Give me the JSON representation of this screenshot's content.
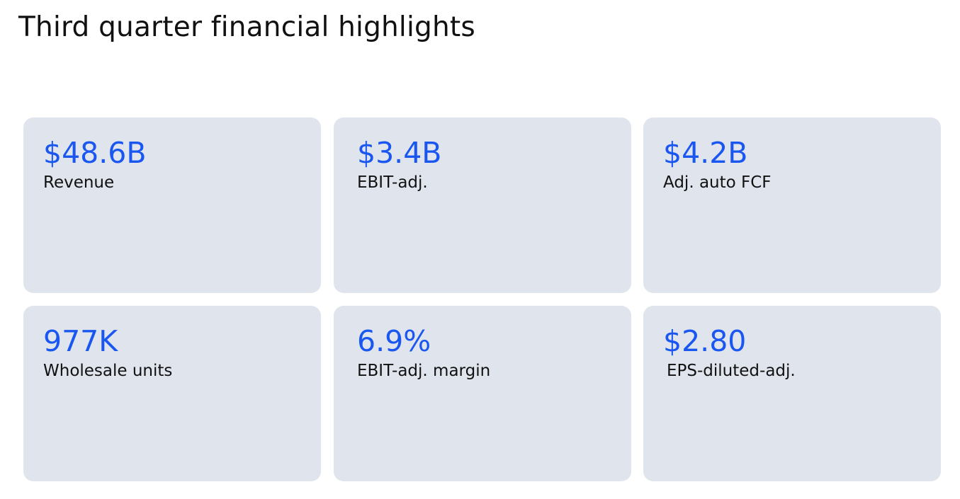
{
  "page": {
    "title": "Third quarter financial highlights"
  },
  "colors": {
    "value_text": "#1a56f0",
    "card_background": "#e0e4ed",
    "label_text": "#111111"
  },
  "metrics": [
    {
      "value": "$48.6B",
      "label": "Revenue"
    },
    {
      "value": "$3.4B",
      "label": "EBIT-adj."
    },
    {
      "value": "$4.2B",
      "label": "Adj. auto FCF"
    },
    {
      "value": "977K",
      "label": "Wholesale units"
    },
    {
      "value": "6.9%",
      "label": "EBIT-adj. margin"
    },
    {
      "value": "$2.80",
      "label": "EPS-diluted-adj."
    }
  ]
}
